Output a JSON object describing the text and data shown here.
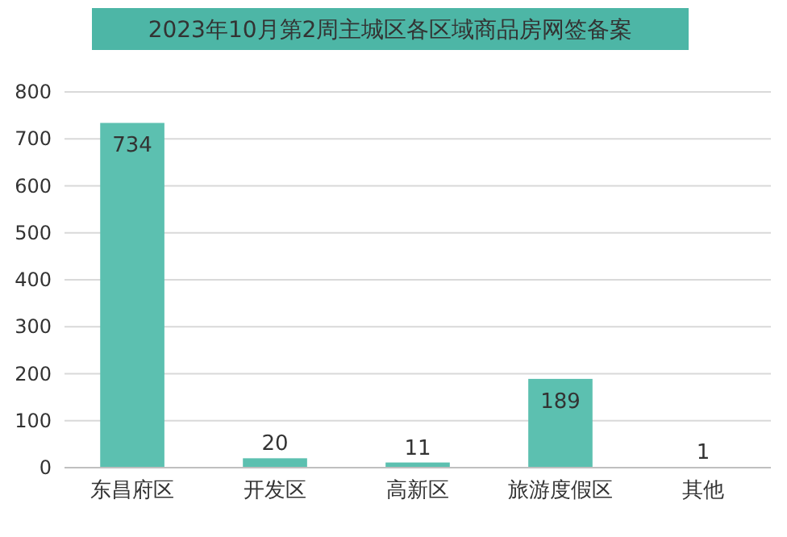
{
  "chart_data": {
    "type": "bar",
    "title": "2023年10月第2周主城区各区域商品房网签备案",
    "categories": [
      "东昌府区",
      "开发区",
      "高新区",
      "旅游度假区",
      "其他"
    ],
    "values": [
      734,
      20,
      11,
      189,
      1
    ],
    "color": "#5cc0b0",
    "ylim": [
      0,
      800
    ],
    "yticks": [
      0,
      100,
      200,
      300,
      400,
      500,
      600,
      700,
      800
    ],
    "grid": "y",
    "data_labels": true
  }
}
